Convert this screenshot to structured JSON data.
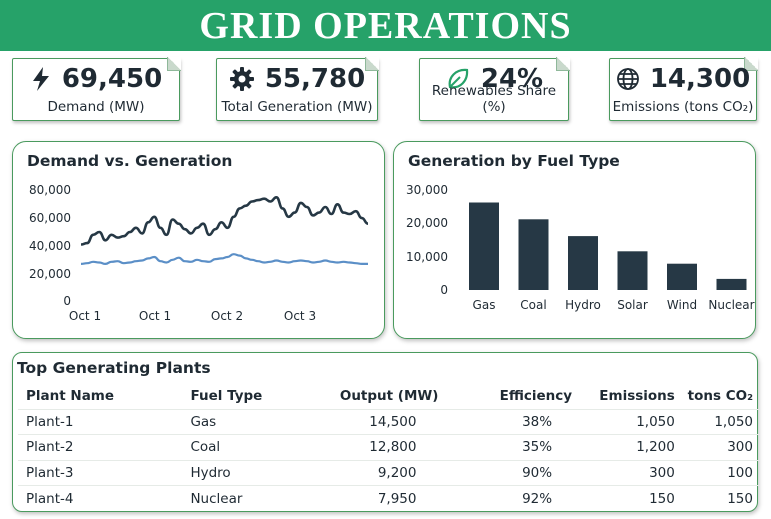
{
  "header": {
    "title": "GRID OPERATIONS"
  },
  "kpis": [
    {
      "icon": "lightning-icon",
      "value": "69,450",
      "label": "Demand (MW)"
    },
    {
      "icon": "gear-icon",
      "value": "55,780",
      "label": "Total Generation (MW)"
    },
    {
      "icon": "leaf-icon",
      "value": "24%",
      "label": "Renewables Share (%)"
    },
    {
      "icon": "globe-icon",
      "value": "14,300",
      "label": "Emissions (tons CO₂)"
    }
  ],
  "colors": {
    "accent": "#26a269",
    "dark": "#263845",
    "blue": "#5b8fc7"
  },
  "demand_chart": {
    "title": "Demand vs. Generation",
    "y_ticks": [
      "80,000",
      "60,000",
      "40,000",
      "20,000",
      "0"
    ],
    "x_ticks": [
      "Oct 1",
      "Oct 1",
      "Oct 2",
      "Oct 3"
    ]
  },
  "fuel_chart": {
    "title": "Generation by Fuel Type",
    "y_ticks": [
      "30,000",
      "20,000",
      "10,000",
      "0"
    ]
  },
  "plants": {
    "title": "Top Generating Plants",
    "columns": [
      "Plant Name",
      "Fuel Type",
      "Output  (MW)",
      "Efficiency",
      "Emissions",
      "tons CO₂"
    ],
    "rows": [
      [
        "Plant-1",
        "Gas",
        "14,500",
        "38%",
        "1,050",
        "1,050"
      ],
      [
        "Plant-2",
        "Coal",
        "12,800",
        "35%",
        "1,200",
        "300"
      ],
      [
        "Plant-3",
        "Hydro",
        "9,200",
        "90%",
        "300",
        "100"
      ],
      [
        "Plant-4",
        "Nuclear",
        "7,950",
        "92%",
        "150",
        "150"
      ]
    ]
  },
  "chart_data": [
    {
      "type": "line",
      "title": "Demand vs. Generation",
      "ylim": [
        0,
        80000
      ],
      "x_ticks": [
        "Oct 1",
        "Oct 1",
        "Oct 2",
        "Oct 3"
      ],
      "series": [
        {
          "values": [
            40000,
            41000,
            47000,
            49000,
            43000,
            47000,
            45000,
            46000,
            49000,
            52000,
            48000,
            56000,
            60000,
            52000,
            47000,
            58000,
            55000,
            51000,
            48000,
            52000,
            55000,
            47000,
            51000,
            56000,
            52000,
            60000,
            66000,
            68000,
            71000,
            72000,
            73000,
            71000,
            74000,
            66000,
            60000,
            63000,
            70000,
            67000,
            61000,
            63000,
            67000,
            62000,
            69000,
            63000,
            62000,
            64000,
            59000,
            55000
          ]
        },
        {
          "values": [
            26000,
            26500,
            27500,
            27000,
            26000,
            27500,
            28000,
            26500,
            27000,
            28000,
            28500,
            30000,
            31000,
            28000,
            27000,
            29000,
            30500,
            28000,
            27500,
            29000,
            28000,
            27500,
            29500,
            30000,
            31000,
            33000,
            32000,
            30000,
            29000,
            28000,
            27000,
            27500,
            28500,
            27500,
            27000,
            28000,
            28500,
            28000,
            27000,
            27500,
            28500,
            27500,
            27000,
            27500,
            27000,
            26500,
            26000,
            26000
          ]
        }
      ]
    },
    {
      "type": "bar",
      "title": "Generation by Fuel Type",
      "ylim": [
        0,
        30000
      ],
      "categories": [
        "Gas",
        "Coal",
        "Hydro",
        "Solar",
        "Wind",
        "Nuclear"
      ],
      "values": [
        26000,
        21000,
        16000,
        11500,
        7800,
        3300
      ]
    }
  ]
}
